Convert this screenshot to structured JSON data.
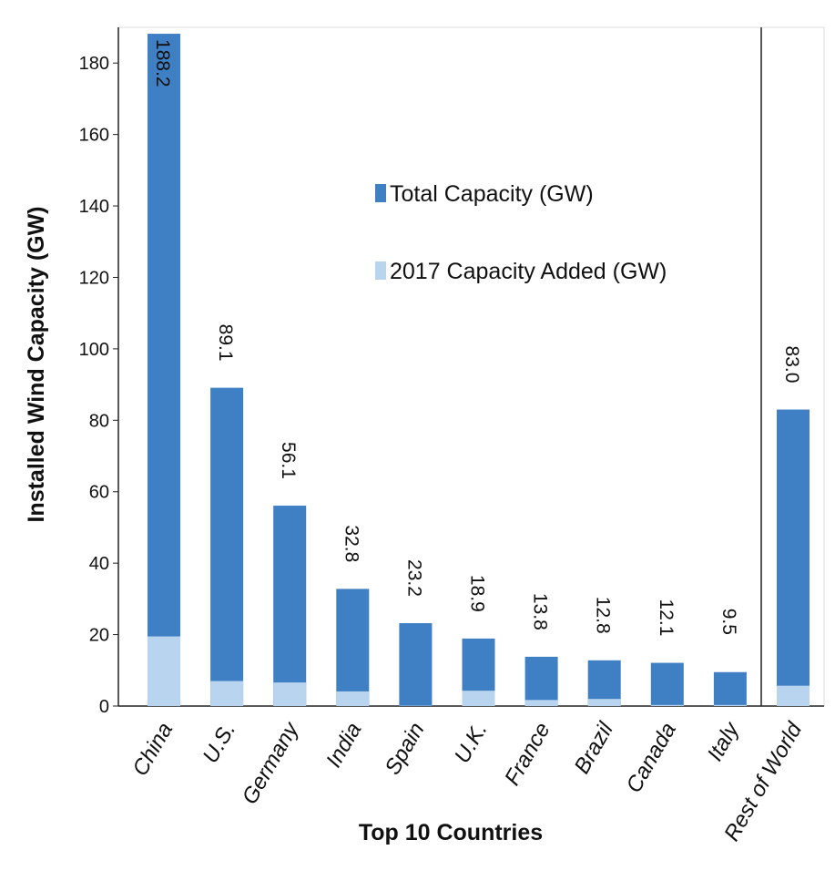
{
  "chart_data": {
    "type": "bar",
    "x_label": "Top 10 Countries",
    "y_label": "Installed Wind Capacity (GW)",
    "categories": [
      "China",
      "U.S.",
      "Germany",
      "India",
      "Spain",
      "U.K.",
      "France",
      "Brazil",
      "Canada",
      "Italy",
      "Rest of World"
    ],
    "series": [
      {
        "name": "Total Capacity (GW)",
        "color": "#3f7fc4",
        "values": [
          188.2,
          89.1,
          56.1,
          32.8,
          23.2,
          18.9,
          13.8,
          12.8,
          12.1,
          9.5,
          83.0
        ],
        "value_labels": [
          "188.2",
          "89.1",
          "56.1",
          "32.8",
          "23.2",
          "18.9",
          "13.8",
          "12.8",
          "12.1",
          "9.5",
          "83.0"
        ]
      },
      {
        "name": "2017 Capacity Added (GW)",
        "color": "#b9d4ee",
        "values": [
          19.5,
          7.0,
          6.6,
          4.1,
          0.1,
          4.3,
          1.7,
          2.0,
          0.3,
          0.3,
          5.7
        ]
      }
    ],
    "ylim": [
      0,
      190
    ],
    "yticks": [
      0,
      20,
      40,
      60,
      80,
      100,
      120,
      140,
      160,
      180
    ],
    "legend": "upper center",
    "grid": false
  }
}
